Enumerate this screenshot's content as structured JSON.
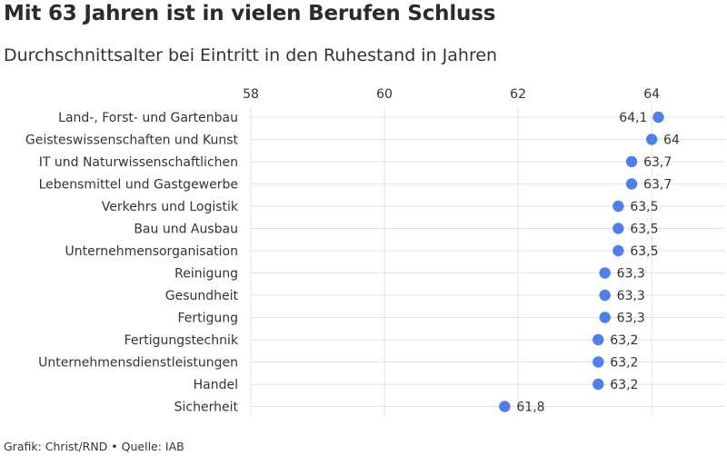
{
  "header": {
    "title": "Mit 63 Jahren ist in vielen Berufen Schluss",
    "subtitle": "Durchschnittsalter bei Eintritt in den Ruhestand in Jahren"
  },
  "footer": {
    "source": "Grafik: Christ/RND • Quelle: IAB"
  },
  "colors": {
    "dot": "#4f7fea",
    "grid": "#e3e3e3"
  },
  "chart_data": {
    "type": "scatter",
    "orientation": "horizontal-dot",
    "title": "Mit 63 Jahren ist in vielen Berufen Schluss",
    "subtitle": "Durchschnittsalter bei Eintritt in den Ruhestand in Jahren",
    "xlim": [
      58,
      65.1
    ],
    "x_ticks": [
      58,
      60,
      62,
      64
    ],
    "x_axis_position": "top",
    "grid": true,
    "categories": [
      "Land-, Forst- und Gartenbau",
      "Geisteswissenschaften und Kunst",
      "IT und Naturwissenschaftlichen",
      "Lebensmittel und Gastgewerbe",
      "Verkehrs und Logistik",
      "Bau und Ausbau",
      "Unternehmensorganisation",
      "Reinigung",
      "Gesundheit",
      "Fertigung",
      "Fertigungstechnik",
      "Unternehmensdienstleistungen",
      "Handel",
      "Sicherheit"
    ],
    "values": [
      64.1,
      64,
      63.7,
      63.7,
      63.5,
      63.5,
      63.5,
      63.3,
      63.3,
      63.3,
      63.2,
      63.2,
      63.2,
      61.8
    ],
    "value_labels": [
      "64,1",
      "64",
      "63,7",
      "63,7",
      "63,5",
      "63,5",
      "63,5",
      "63,3",
      "63,3",
      "63,3",
      "63,2",
      "63,2",
      "63,2",
      "61,8"
    ]
  }
}
